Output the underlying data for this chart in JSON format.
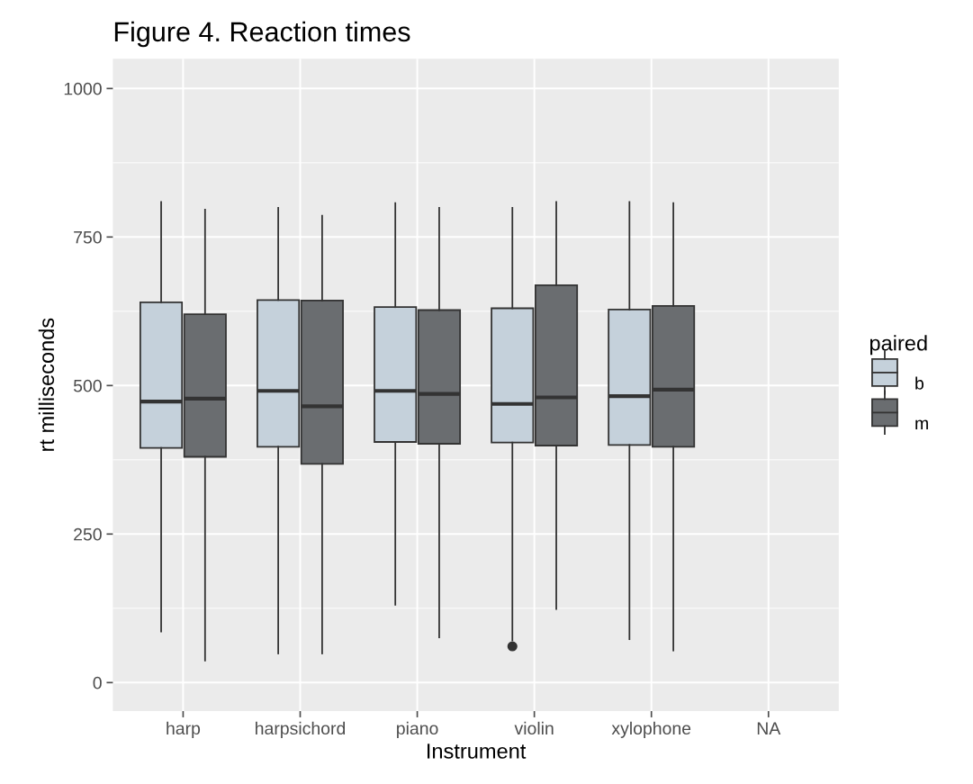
{
  "chart_data": {
    "type": "box",
    "title": "Figure 4. Reaction times",
    "xlabel": "Instrument",
    "ylabel": "rt milliseconds",
    "legend_title": "paired",
    "categories": [
      "harp",
      "harpsichord",
      "piano",
      "violin",
      "xylophone",
      "NA"
    ],
    "series": [
      {
        "name": "b",
        "color": "#c5d1db",
        "boxes": [
          {
            "low": 86,
            "q1": 395,
            "median": 473,
            "q3": 640,
            "high": 809
          },
          {
            "low": 49,
            "q1": 397,
            "median": 491,
            "q3": 644,
            "high": 799
          },
          {
            "low": 131,
            "q1": 405,
            "median": 491,
            "q3": 632,
            "high": 807
          },
          {
            "low": 71,
            "q1": 404,
            "median": 469,
            "q3": 630,
            "high": 799,
            "outliers": [
              61
            ]
          },
          {
            "low": 73,
            "q1": 400,
            "median": 482,
            "q3": 628,
            "high": 809
          },
          null
        ]
      },
      {
        "name": "m",
        "color": "#6a6d70",
        "boxes": [
          {
            "low": 37,
            "q1": 380,
            "median": 478,
            "q3": 620,
            "high": 796
          },
          {
            "low": 49,
            "q1": 368,
            "median": 465,
            "q3": 643,
            "high": 786
          },
          {
            "low": 76,
            "q1": 402,
            "median": 486,
            "q3": 627,
            "high": 799
          },
          {
            "low": 124,
            "q1": 399,
            "median": 480,
            "q3": 669,
            "high": 809
          },
          {
            "low": 54,
            "q1": 397,
            "median": 493,
            "q3": 634,
            "high": 807
          },
          null
        ]
      }
    ],
    "ylim": [
      -48,
      1050
    ],
    "yticks": [
      0,
      250,
      500,
      750,
      1000
    ],
    "grid": true,
    "legend": "right"
  }
}
